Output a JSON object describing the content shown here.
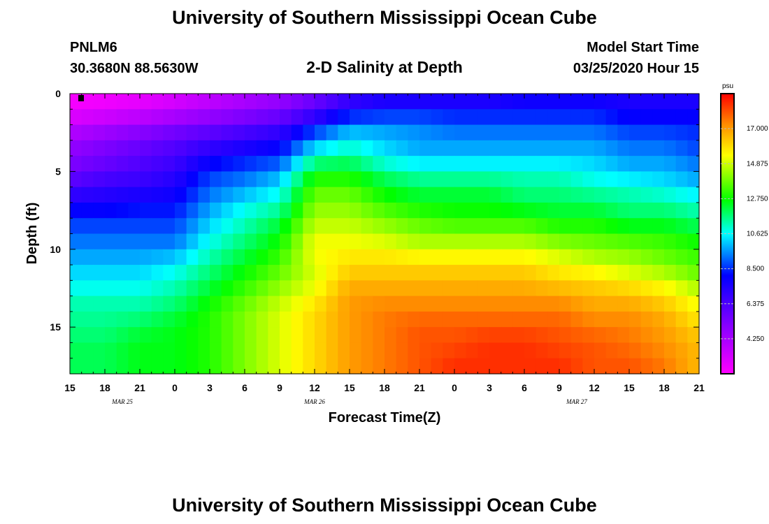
{
  "header": {
    "title_top": "University of Southern Mississippi Ocean Cube",
    "title_bottom": "University of Southern Mississippi Ocean Cube",
    "station_id": "PNLM6",
    "coordinates": "30.3680N 88.5630W",
    "plot_title": "2-D Salinity at Depth",
    "model_start_label": "Model Start Time",
    "model_start_value": "03/25/2020 Hour 15"
  },
  "chart_data": {
    "type": "heatmap",
    "title": "2-D Salinity at Depth",
    "xlabel": "Forecast Time(Z)",
    "ylabel": "Depth (ft)",
    "units": "psu",
    "xlim": [
      0,
      54
    ],
    "ylim": [
      18,
      0
    ],
    "x_ticks": [
      {
        "h": 0,
        "label": "15"
      },
      {
        "h": 3,
        "label": "18"
      },
      {
        "h": 6,
        "label": "21"
      },
      {
        "h": 9,
        "label": "0"
      },
      {
        "h": 12,
        "label": "3"
      },
      {
        "h": 15,
        "label": "6"
      },
      {
        "h": 18,
        "label": "9"
      },
      {
        "h": 21,
        "label": "12"
      },
      {
        "h": 24,
        "label": "15"
      },
      {
        "h": 27,
        "label": "18"
      },
      {
        "h": 30,
        "label": "21"
      },
      {
        "h": 33,
        "label": "0"
      },
      {
        "h": 36,
        "label": "3"
      },
      {
        "h": 39,
        "label": "6"
      },
      {
        "h": 42,
        "label": "9"
      },
      {
        "h": 45,
        "label": "12"
      },
      {
        "h": 48,
        "label": "15"
      },
      {
        "h": 51,
        "label": "18"
      },
      {
        "h": 54,
        "label": "21"
      }
    ],
    "date_labels": [
      {
        "h": 4.5,
        "label": "MAR 25"
      },
      {
        "h": 21,
        "label": "MAR 26"
      },
      {
        "h": 43.5,
        "label": "MAR 27"
      }
    ],
    "y_ticks": [
      {
        "d": 0,
        "label": "0"
      },
      {
        "d": 5,
        "label": "5"
      },
      {
        "d": 10,
        "label": "10"
      },
      {
        "d": 15,
        "label": "15"
      }
    ],
    "colorbar": {
      "min": 2.125,
      "max": 19.125,
      "ticks": [
        {
          "v": 17.0,
          "label": "17.000"
        },
        {
          "v": 14.875,
          "label": "14.875"
        },
        {
          "v": 12.75,
          "label": "12.750"
        },
        {
          "v": 10.625,
          "label": "10.625"
        },
        {
          "v": 8.5,
          "label": "8.500"
        },
        {
          "v": 6.375,
          "label": "6.375"
        },
        {
          "v": 4.25,
          "label": "4.250"
        }
      ]
    },
    "depths_ft": [
      0,
      1,
      2,
      3,
      4,
      5,
      6,
      7,
      8,
      9,
      10,
      11,
      12,
      13,
      14,
      15,
      16,
      17,
      18
    ],
    "hours": [
      0,
      3,
      6,
      9,
      12,
      15,
      18,
      21,
      24,
      27,
      30,
      33,
      36,
      39,
      42,
      45,
      48,
      51,
      54
    ],
    "salinity_psu": [
      [
        2.2,
        2.3,
        2.5,
        2.9,
        3.5,
        4.0,
        4.5,
        5.5,
        6.5,
        7.0,
        7.0,
        7.0,
        7.0,
        7.5,
        7.5,
        7.5,
        7.5,
        7.5,
        7.5
      ],
      [
        2.5,
        2.7,
        3.0,
        3.5,
        4.0,
        4.5,
        5.0,
        6.0,
        7.5,
        8.0,
        8.0,
        8.0,
        8.0,
        8.0,
        8.0,
        8.0,
        7.5,
        7.5,
        7.5
      ],
      [
        3.5,
        4.0,
        4.5,
        5.0,
        5.5,
        6.0,
        6.5,
        8.0,
        9.5,
        9.5,
        9.5,
        9.0,
        9.0,
        9.0,
        9.0,
        9.0,
        8.5,
        8.5,
        8.5
      ],
      [
        4.5,
        5.0,
        5.5,
        6.0,
        6.5,
        7.0,
        7.5,
        9.5,
        10.5,
        10.0,
        9.5,
        9.5,
        9.5,
        9.5,
        9.5,
        9.5,
        9.0,
        9.0,
        8.5
      ],
      [
        5.0,
        5.5,
        6.0,
        6.5,
        7.5,
        8.0,
        8.5,
        11.0,
        11.5,
        10.5,
        10.0,
        10.0,
        10.0,
        10.0,
        10.0,
        10.0,
        9.5,
        9.5,
        9.0
      ],
      [
        5.5,
        6.0,
        6.5,
        7.0,
        8.5,
        9.0,
        9.5,
        12.5,
        12.5,
        11.5,
        11.0,
        11.0,
        11.0,
        11.0,
        11.0,
        10.5,
        10.0,
        10.0,
        9.5
      ],
      [
        6.5,
        7.0,
        7.0,
        7.5,
        9.0,
        9.5,
        10.5,
        13.5,
        13.5,
        12.5,
        12.0,
        12.0,
        12.0,
        11.5,
        11.5,
        11.0,
        11.0,
        10.5,
        10.0
      ],
      [
        7.5,
        7.5,
        8.0,
        8.0,
        9.5,
        10.5,
        11.0,
        14.0,
        14.0,
        13.0,
        12.5,
        12.5,
        12.5,
        12.0,
        12.0,
        12.0,
        11.5,
        11.5,
        11.0
      ],
      [
        8.5,
        8.5,
        8.5,
        8.5,
        10.0,
        11.0,
        12.0,
        14.5,
        14.5,
        14.0,
        13.5,
        13.0,
        13.0,
        13.0,
        12.5,
        12.5,
        12.0,
        12.0,
        11.5
      ],
      [
        9.0,
        9.0,
        9.0,
        9.0,
        10.5,
        11.5,
        12.5,
        15.0,
        15.0,
        14.5,
        14.0,
        14.0,
        14.0,
        14.0,
        13.5,
        13.5,
        13.0,
        13.0,
        12.5
      ],
      [
        9.5,
        9.5,
        9.5,
        9.5,
        11.0,
        12.0,
        13.0,
        15.5,
        15.5,
        15.5,
        15.0,
        15.0,
        15.0,
        15.0,
        14.5,
        14.0,
        14.0,
        13.5,
        13.0
      ],
      [
        10.0,
        10.0,
        10.0,
        10.5,
        11.5,
        12.5,
        13.5,
        15.0,
        16.0,
        16.0,
        16.0,
        16.0,
        16.0,
        16.0,
        15.5,
        15.0,
        14.5,
        14.0,
        13.5
      ],
      [
        10.5,
        10.5,
        10.5,
        11.0,
        12.0,
        13.0,
        14.0,
        15.0,
        16.5,
        16.5,
        16.5,
        16.5,
        16.5,
        16.5,
        16.0,
        16.0,
        15.5,
        15.0,
        14.0
      ],
      [
        11.0,
        11.0,
        11.0,
        11.5,
        12.5,
        13.5,
        14.5,
        15.5,
        17.0,
        17.0,
        17.0,
        17.0,
        17.0,
        17.0,
        17.0,
        16.5,
        16.5,
        16.0,
        15.0
      ],
      [
        11.5,
        11.5,
        11.5,
        12.0,
        13.0,
        14.0,
        15.0,
        16.0,
        17.0,
        17.5,
        17.5,
        17.5,
        17.5,
        17.5,
        17.5,
        17.0,
        17.0,
        16.5,
        15.5
      ],
      [
        11.5,
        11.5,
        12.0,
        12.5,
        13.0,
        14.0,
        15.0,
        16.0,
        17.0,
        17.5,
        18.0,
        18.0,
        18.0,
        18.0,
        18.0,
        17.5,
        17.5,
        17.0,
        16.0
      ],
      [
        12.0,
        12.0,
        12.5,
        12.5,
        13.0,
        14.0,
        15.0,
        16.0,
        17.0,
        17.5,
        18.0,
        18.0,
        18.5,
        18.5,
        18.0,
        18.0,
        17.5,
        17.0,
        16.5
      ],
      [
        12.0,
        12.0,
        12.5,
        12.5,
        13.0,
        14.0,
        15.0,
        16.0,
        17.0,
        17.5,
        18.0,
        18.5,
        18.5,
        18.5,
        18.5,
        18.0,
        18.0,
        17.5,
        16.5
      ],
      [
        12.0,
        12.0,
        12.5,
        12.5,
        13.0,
        14.0,
        15.0,
        16.0,
        17.0,
        17.5,
        18.0,
        18.5,
        18.5,
        18.5,
        18.5,
        18.0,
        18.0,
        17.5,
        16.5
      ]
    ]
  }
}
